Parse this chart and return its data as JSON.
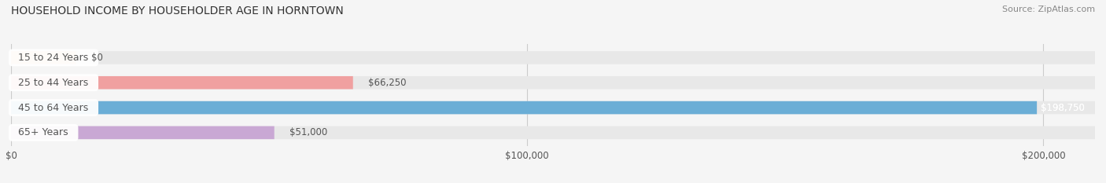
{
  "title": "HOUSEHOLD INCOME BY HOUSEHOLDER AGE IN HORNTOWN",
  "source": "Source: ZipAtlas.com",
  "categories": [
    "15 to 24 Years",
    "25 to 44 Years",
    "45 to 64 Years",
    "65+ Years"
  ],
  "values": [
    0,
    66250,
    198750,
    51000
  ],
  "bar_colors": [
    "#f0c090",
    "#f0a0a0",
    "#6baed6",
    "#c9a8d4"
  ],
  "bar_bg_color": "#e8e8e8",
  "value_labels": [
    "$0",
    "$66,250",
    "$198,750",
    "$51,000"
  ],
  "tick_labels": [
    "$0",
    "$100,000",
    "$200,000"
  ],
  "tick_values": [
    0,
    100000,
    200000
  ],
  "xmax": 210000,
  "label_text_color": "#555555",
  "title_color": "#333333",
  "source_color": "#888888",
  "background_color": "#f5f5f5"
}
